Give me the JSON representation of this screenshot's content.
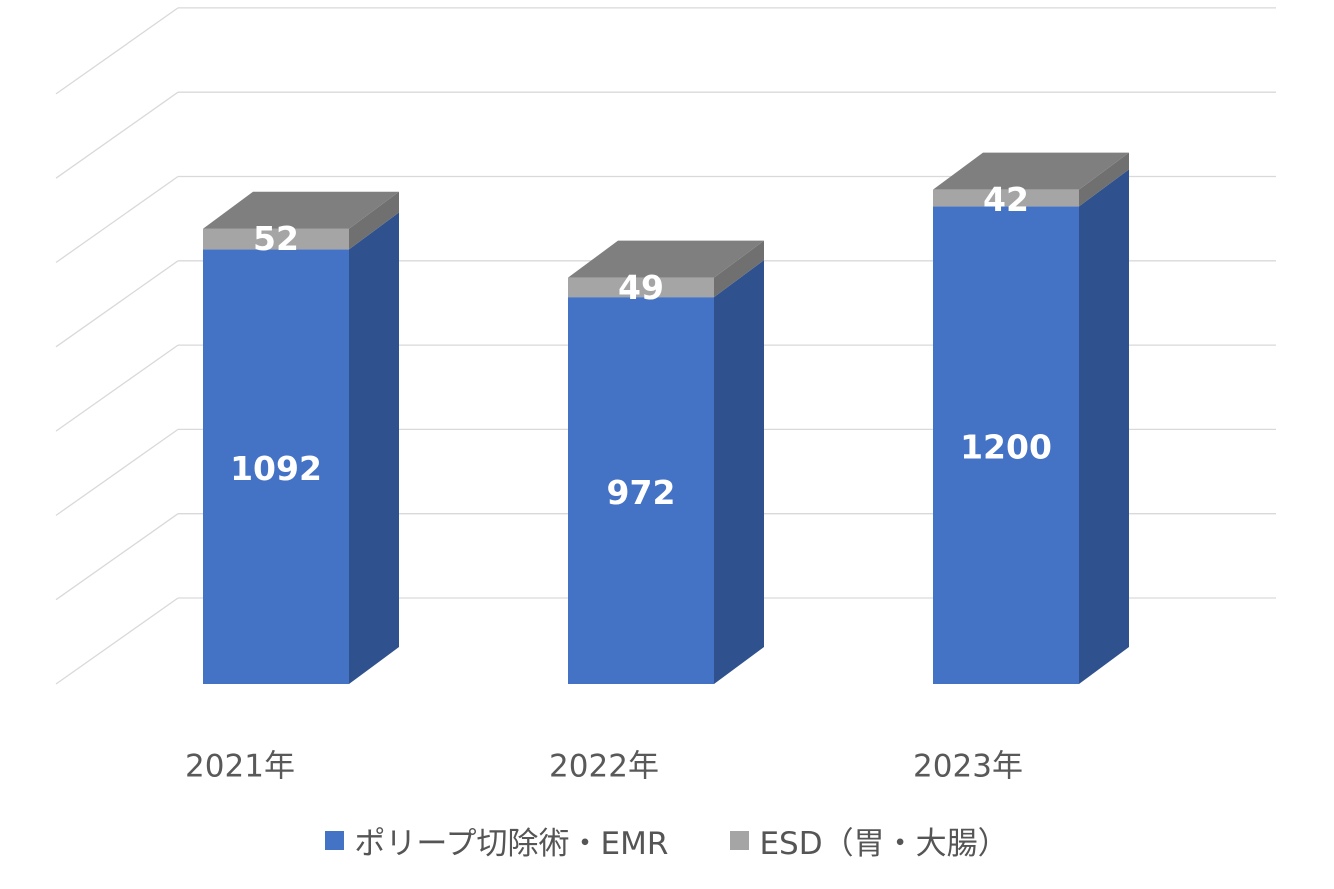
{
  "chart_data": {
    "type": "bar",
    "stacked": true,
    "style": "3d-column",
    "categories": [
      "2021年",
      "2022年",
      "2023年"
    ],
    "series": [
      {
        "name": "ポリープ切除術・EMR",
        "values": [
          1092,
          972,
          1200
        ],
        "color": "#4472C4"
      },
      {
        "name": "ESD（胃・大腸）",
        "values": [
          52,
          49,
          42
        ],
        "color": "#A5A5A5"
      }
    ],
    "ylim": [
      0,
      1550
    ],
    "gridlines": true,
    "legend_position": "bottom",
    "data_labels": true
  },
  "colors": {
    "grid": "#D9D9D9",
    "side_blue": "#2F528F",
    "top_gray": "#7F7F7F",
    "side_gray": "#707070",
    "label_text": "#FFFFFF",
    "axis_text": "#595959"
  }
}
